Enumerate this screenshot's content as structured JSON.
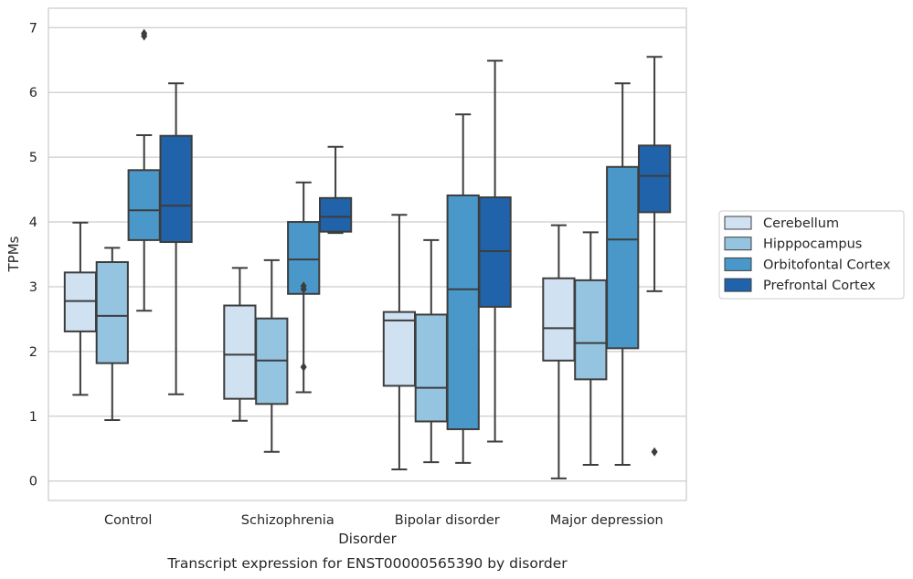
{
  "chart_data": {
    "type": "box",
    "title": "Transcript expression for ENST00000565390 by disorder",
    "xlabel": "Disorder",
    "ylabel": "TPMs",
    "ylim": [
      -0.3,
      7.3
    ],
    "yticks": [
      0,
      1,
      2,
      3,
      4,
      5,
      6,
      7
    ],
    "grid": "horizontal",
    "legend_position": "right",
    "categories": [
      "Control",
      "Schizophrenia",
      "Bipolar disorder",
      "Major depression"
    ],
    "series": [
      {
        "name": "Cerebellum",
        "color": "#d0e1f2",
        "boxes": [
          {
            "whislo": 1.33,
            "q1": 2.31,
            "med": 2.78,
            "q3": 3.22,
            "whishi": 3.99,
            "fliers": []
          },
          {
            "whislo": 0.93,
            "q1": 1.27,
            "med": 1.95,
            "q3": 2.71,
            "whishi": 3.29,
            "fliers": []
          },
          {
            "whislo": 0.18,
            "q1": 1.47,
            "med": 2.48,
            "q3": 2.61,
            "whishi": 4.11,
            "fliers": []
          },
          {
            "whislo": 0.04,
            "q1": 1.86,
            "med": 2.36,
            "q3": 3.13,
            "whishi": 3.95,
            "fliers": []
          }
        ]
      },
      {
        "name": "Hipppocampus",
        "color": "#94c4df",
        "boxes": [
          {
            "whislo": 0.94,
            "q1": 1.82,
            "med": 2.55,
            "q3": 3.38,
            "whishi": 3.6,
            "fliers": []
          },
          {
            "whislo": 0.45,
            "q1": 1.19,
            "med": 1.86,
            "q3": 2.51,
            "whishi": 3.41,
            "fliers": []
          },
          {
            "whislo": 0.29,
            "q1": 0.92,
            "med": 1.44,
            "q3": 2.57,
            "whishi": 3.72,
            "fliers": []
          },
          {
            "whislo": 0.25,
            "q1": 1.57,
            "med": 2.13,
            "q3": 3.1,
            "whishi": 3.84,
            "fliers": []
          }
        ]
      },
      {
        "name": "Orbitofontal Cortex",
        "color": "#4a98c9",
        "boxes": [
          {
            "whislo": 2.63,
            "q1": 3.72,
            "med": 4.18,
            "q3": 4.8,
            "whishi": 5.34,
            "fliers": [
              6.87,
              6.91
            ]
          },
          {
            "whislo": 1.37,
            "q1": 2.89,
            "med": 3.42,
            "q3": 4.0,
            "whishi": 4.61,
            "fliers": [
              2.96,
              3.01,
              1.76
            ]
          },
          {
            "whislo": 0.28,
            "q1": 0.8,
            "med": 2.96,
            "q3": 4.41,
            "whishi": 5.66,
            "fliers": []
          },
          {
            "whislo": 0.25,
            "q1": 2.05,
            "med": 3.73,
            "q3": 4.85,
            "whishi": 6.14,
            "fliers": []
          }
        ]
      },
      {
        "name": "Prefrontal Cortex",
        "color": "#2163aa",
        "boxes": [
          {
            "whislo": 1.34,
            "q1": 3.69,
            "med": 4.25,
            "q3": 5.33,
            "whishi": 6.14,
            "fliers": []
          },
          {
            "whislo": 3.83,
            "q1": 3.85,
            "med": 4.08,
            "q3": 4.37,
            "whishi": 5.16,
            "fliers": []
          },
          {
            "whislo": 0.61,
            "q1": 2.69,
            "med": 3.55,
            "q3": 4.38,
            "whishi": 6.49,
            "fliers": []
          },
          {
            "whislo": 2.93,
            "q1": 4.15,
            "med": 4.71,
            "q3": 5.18,
            "whishi": 6.55,
            "fliers": [
              0.45
            ]
          }
        ]
      }
    ]
  }
}
